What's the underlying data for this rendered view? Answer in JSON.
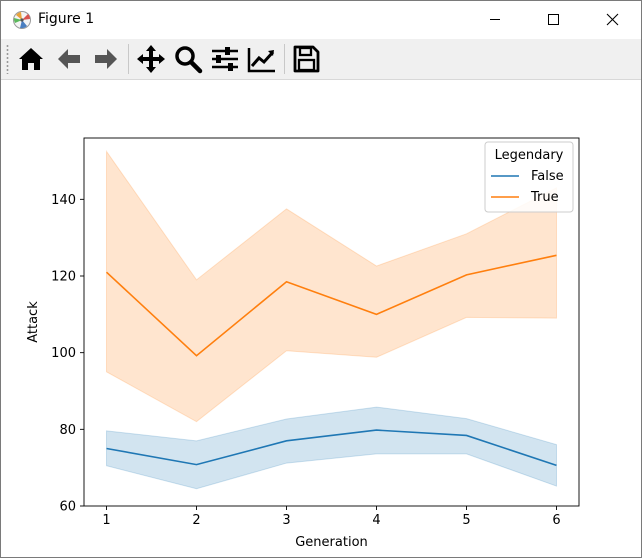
{
  "window": {
    "title": "Figure 1",
    "icons": [
      "matplotlib-icon",
      "minimize-icon",
      "maximize-icon",
      "close-icon"
    ]
  },
  "toolbar": {
    "buttons": [
      {
        "name": "home",
        "icon": "home-icon"
      },
      {
        "name": "back",
        "icon": "back-arrow-icon"
      },
      {
        "name": "forward",
        "icon": "forward-arrow-icon"
      },
      {
        "name": "pan",
        "icon": "move-icon"
      },
      {
        "name": "zoom",
        "icon": "zoom-icon"
      },
      {
        "name": "subplots",
        "icon": "sliders-icon"
      },
      {
        "name": "edit-axis",
        "icon": "line-chart-icon"
      },
      {
        "name": "save",
        "icon": "save-icon"
      }
    ]
  },
  "colors": {
    "false_line": "#1f77b4",
    "false_band": "#1f77b4",
    "true_line": "#ff7f0e",
    "true_band": "#ff7f0e"
  },
  "chart_data": {
    "type": "line",
    "title": "",
    "xlabel": "Generation",
    "ylabel": "Attack",
    "x": [
      1,
      2,
      3,
      4,
      5,
      6
    ],
    "xticks": [
      1,
      2,
      3,
      4,
      5,
      6
    ],
    "yticks": [
      60,
      80,
      100,
      120,
      140
    ],
    "xlim": [
      0.75,
      6.25
    ],
    "ylim": [
      60,
      156
    ],
    "grid": false,
    "legend": {
      "title": "Legendary",
      "placement": "top-right"
    },
    "series": [
      {
        "name": "False",
        "values": [
          75.0,
          70.8,
          77.0,
          79.8,
          78.4,
          70.6
        ],
        "ci_low": [
          70.5,
          64.5,
          71.2,
          73.6,
          73.6,
          65.2
        ],
        "ci_high": [
          79.6,
          77.0,
          82.7,
          85.8,
          82.8,
          76.0
        ]
      },
      {
        "name": "True",
        "values": [
          121.0,
          99.2,
          118.5,
          110.0,
          120.3,
          125.4
        ],
        "ci_low": [
          95.0,
          82.0,
          100.5,
          98.8,
          109.2,
          109.0
        ],
        "ci_high": [
          152.5,
          119.0,
          137.5,
          122.6,
          131.0,
          143.0
        ]
      }
    ]
  }
}
